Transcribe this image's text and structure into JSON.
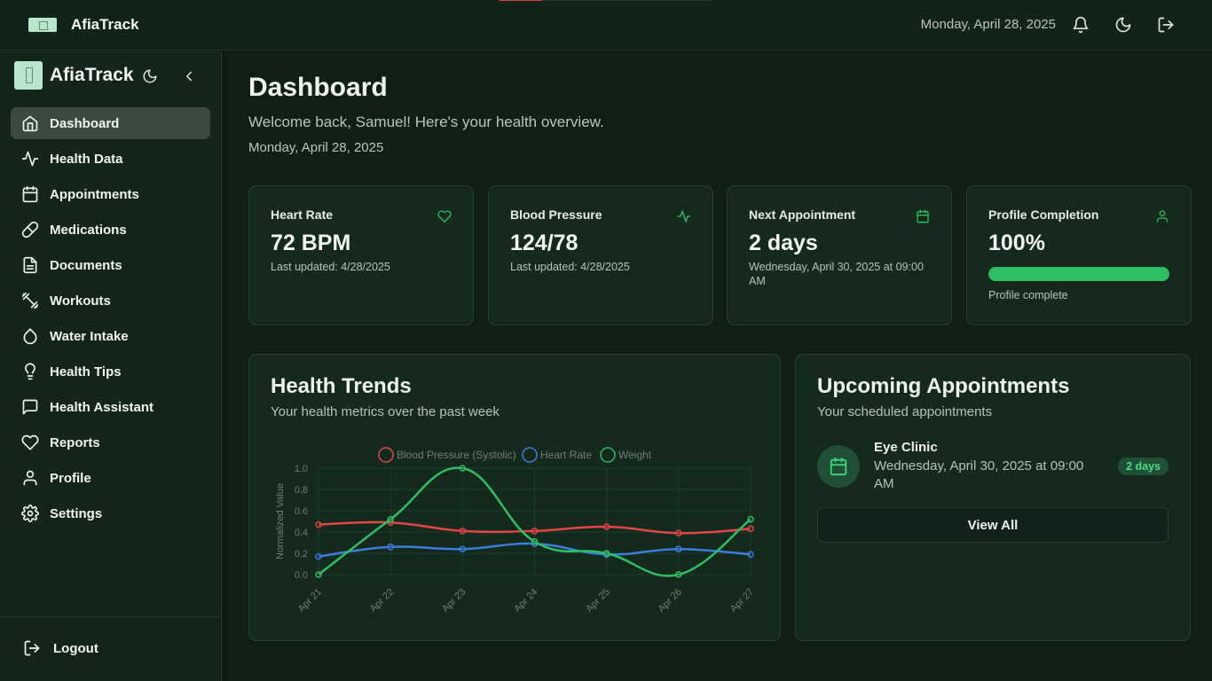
{
  "app": {
    "name": "AfiaTrack"
  },
  "topbar": {
    "date": "Monday, April 28, 2025"
  },
  "sidebar": {
    "brand": "AfiaTrack",
    "items": [
      {
        "label": "Dashboard",
        "icon": "home-icon",
        "active": true
      },
      {
        "label": "Health Data",
        "icon": "activity-icon"
      },
      {
        "label": "Appointments",
        "icon": "calendar-icon"
      },
      {
        "label": "Medications",
        "icon": "pill-icon"
      },
      {
        "label": "Documents",
        "icon": "file-icon"
      },
      {
        "label": "Workouts",
        "icon": "dumbbell-icon"
      },
      {
        "label": "Water Intake",
        "icon": "droplet-icon"
      },
      {
        "label": "Health Tips",
        "icon": "lightbulb-icon"
      },
      {
        "label": "Health Assistant",
        "icon": "message-icon"
      },
      {
        "label": "Reports",
        "icon": "heart-icon"
      },
      {
        "label": "Profile",
        "icon": "user-icon"
      },
      {
        "label": "Settings",
        "icon": "gear-icon"
      }
    ],
    "logout": "Logout"
  },
  "main": {
    "title": "Dashboard",
    "welcome": "Welcome back, Samuel! Here's your health overview.",
    "date": "Monday, April 28, 2025",
    "stats": [
      {
        "title": "Heart Rate",
        "value": "72 BPM",
        "sub": "Last updated: 4/28/2025",
        "icon": "heart-icon"
      },
      {
        "title": "Blood Pressure",
        "value": "124/78",
        "sub": "Last updated: 4/28/2025",
        "icon": "activity-icon"
      },
      {
        "title": "Next Appointment",
        "value": "2 days",
        "sub": "Wednesday, April 30, 2025 at 09:00 AM",
        "icon": "calendar-icon"
      },
      {
        "title": "Profile Completion",
        "value": "100%",
        "sub": "Profile complete",
        "icon": "user-icon",
        "progress": 1.0
      }
    ],
    "trends": {
      "title": "Health Trends",
      "subtitle": "Your health metrics over the past week"
    },
    "appointments": {
      "title": "Upcoming Appointments",
      "subtitle": "Your scheduled appointments",
      "items": [
        {
          "title": "Eye Clinic",
          "time": "Wednesday, April 30, 2025 at 09:00 AM",
          "badge": "2 days"
        }
      ],
      "view_all": "View All"
    }
  },
  "colors": {
    "accent": "#2fbf62",
    "bp": "#e04848",
    "hr": "#3b7de0",
    "weight": "#2fbf62"
  },
  "chart_data": {
    "type": "line",
    "x": [
      "Apr 21",
      "Apr 22",
      "Apr 23",
      "Apr 24",
      "Apr 25",
      "Apr 26",
      "Apr 27"
    ],
    "ylabel": "Normalized Value",
    "ylim": [
      0,
      1.0
    ],
    "yticks": [
      "0.0",
      "0.2",
      "0.4",
      "0.6",
      "0.8",
      "1.0"
    ],
    "legend": "top",
    "series": [
      {
        "name": "Blood Pressure (Systolic)",
        "color": "#e04848",
        "values": [
          0.47,
          0.49,
          0.41,
          0.41,
          0.45,
          0.39,
          0.43
        ]
      },
      {
        "name": "Heart Rate",
        "color": "#3b7de0",
        "values": [
          0.17,
          0.26,
          0.24,
          0.29,
          0.19,
          0.24,
          0.19
        ]
      },
      {
        "name": "Weight",
        "color": "#2fbf62",
        "values": [
          0.0,
          0.52,
          1.0,
          0.31,
          0.2,
          0.0,
          0.52
        ]
      }
    ]
  }
}
